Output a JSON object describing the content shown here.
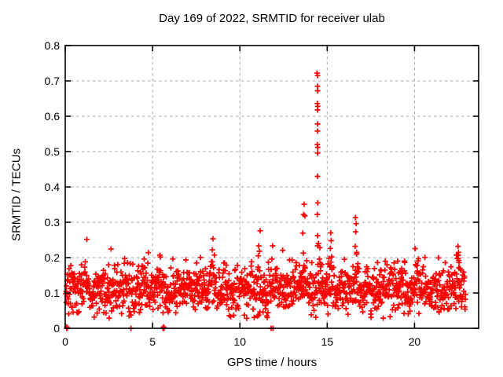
{
  "chart_data": {
    "type": "scatter",
    "title": "Day 169 of 2022, SRMTID for receiver ulab",
    "xlabel": "GPS time / hours",
    "ylabel": "SRMTID / TECUs",
    "xlim": [
      0,
      23.67
    ],
    "ylim": [
      0,
      0.8
    ],
    "xticks": [
      0,
      5,
      10,
      15,
      20
    ],
    "xtick_labels": [
      "0",
      "5",
      "10",
      "15",
      "20"
    ],
    "yticks": [
      0,
      0.1,
      0.2,
      0.3,
      0.4,
      0.5,
      0.6,
      0.7,
      0.8
    ],
    "ytick_labels": [
      "0",
      "0.1",
      "0.2",
      "0.3",
      "0.4",
      "0.5",
      "0.6",
      "0.7",
      "0.8"
    ],
    "grid": {
      "style": "dashed",
      "color": "#a8a8a8"
    },
    "border_color": "#000000",
    "legend": "none",
    "marker": {
      "shape": "plus",
      "color": "#ff0000",
      "size": 7
    },
    "series_name": "SRMTID",
    "noise_model": {
      "seed": 16942,
      "n": 1500,
      "x_start": 0.03,
      "x_end": 22.92,
      "x_jitter": 0.01,
      "mean": 0.095,
      "sd": 0.03,
      "y_min": 0.028,
      "burst_width": 0.22,
      "burst_gain": 0.55,
      "bursts": [
        [
          0.4,
          0.07
        ],
        [
          1.15,
          0.06
        ],
        [
          1.9,
          0.05
        ],
        [
          2.6,
          0.05
        ],
        [
          3.35,
          0.06
        ],
        [
          4.5,
          0.08
        ],
        [
          5.4,
          0.09
        ],
        [
          6.3,
          0.07
        ],
        [
          6.95,
          0.08
        ],
        [
          7.8,
          0.08
        ],
        [
          8.45,
          0.09
        ],
        [
          9.2,
          0.06
        ],
        [
          9.9,
          0.07
        ],
        [
          10.55,
          0.06
        ],
        [
          11.1,
          0.1
        ],
        [
          11.95,
          0.07
        ],
        [
          12.5,
          0.09
        ],
        [
          13.1,
          0.07
        ],
        [
          13.65,
          0.1
        ],
        [
          14.55,
          0.1
        ],
        [
          15.2,
          0.09
        ],
        [
          15.95,
          0.06
        ],
        [
          16.6,
          0.09
        ],
        [
          17.35,
          0.08
        ],
        [
          18.1,
          0.07
        ],
        [
          18.65,
          0.08
        ],
        [
          19.35,
          0.06
        ],
        [
          20.1,
          0.08
        ],
        [
          20.55,
          0.07
        ],
        [
          21.3,
          0.06
        ],
        [
          21.9,
          0.05
        ],
        [
          22.55,
          0.09
        ]
      ]
    },
    "feature_points": [
      [
        14.42,
        0.722
      ],
      [
        14.45,
        0.715
      ],
      [
        14.44,
        0.685
      ],
      [
        14.45,
        0.672
      ],
      [
        14.43,
        0.636
      ],
      [
        14.46,
        0.628
      ],
      [
        14.44,
        0.618
      ],
      [
        14.45,
        0.578
      ],
      [
        14.44,
        0.558
      ],
      [
        14.43,
        0.52
      ],
      [
        14.46,
        0.512
      ],
      [
        14.45,
        0.496
      ],
      [
        14.44,
        0.43
      ],
      [
        14.46,
        0.355
      ],
      [
        14.43,
        0.322
      ],
      [
        14.45,
        0.262
      ],
      [
        14.5,
        0.24
      ],
      [
        14.58,
        0.228
      ],
      [
        13.68,
        0.351
      ],
      [
        13.65,
        0.322
      ],
      [
        13.72,
        0.318
      ],
      [
        13.6,
        0.269
      ],
      [
        13.63,
        0.213
      ],
      [
        15.2,
        0.27
      ],
      [
        15.23,
        0.248
      ],
      [
        15.18,
        0.226
      ],
      [
        16.62,
        0.313
      ],
      [
        16.66,
        0.296
      ],
      [
        16.63,
        0.273
      ],
      [
        16.6,
        0.232
      ],
      [
        16.68,
        0.21
      ],
      [
        11.16,
        0.276
      ],
      [
        11.08,
        0.233
      ],
      [
        11.12,
        0.218
      ],
      [
        11.05,
        0.205
      ],
      [
        22.49,
        0.232
      ],
      [
        22.52,
        0.215
      ],
      [
        22.47,
        0.208
      ],
      [
        22.5,
        0.198
      ],
      [
        22.53,
        0.192
      ],
      [
        22.55,
        0.186
      ],
      [
        22.3,
        0.158
      ],
      [
        8.42,
        0.222
      ],
      [
        12.45,
        0.221
      ],
      [
        4.52,
        0.196
      ],
      [
        5.42,
        0.207
      ],
      [
        20.15,
        0.178
      ],
      [
        0.08,
        0
      ],
      [
        0.1,
        0
      ],
      [
        0.12,
        0
      ],
      [
        0.1,
        0.004
      ],
      [
        3.76,
        0
      ],
      [
        5.6,
        0
      ],
      [
        5.63,
        0
      ],
      [
        5.66,
        0
      ],
      [
        5.63,
        0.004
      ],
      [
        11.79,
        0
      ],
      [
        11.9,
        0
      ]
    ]
  }
}
